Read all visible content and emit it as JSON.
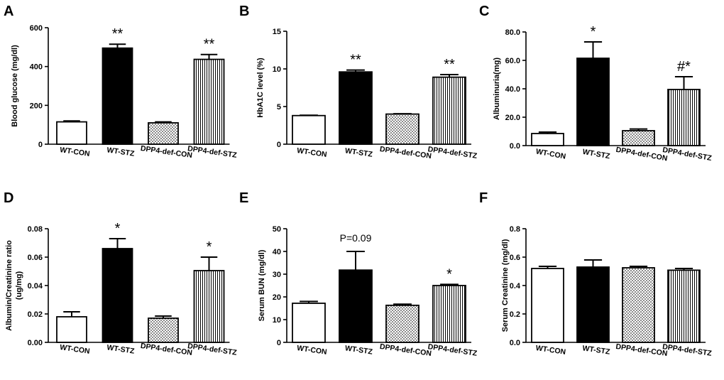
{
  "chart_data": [
    {
      "panel": "A",
      "type": "bar",
      "categories": [
        "WT-CON",
        "WT-STZ",
        "DPP4-def-CON",
        "DPP4-def-STZ"
      ],
      "values": [
        115,
        495,
        110,
        437
      ],
      "errors": [
        5,
        20,
        5,
        25
      ],
      "annotations": [
        "",
        "**",
        "",
        "**"
      ],
      "ylabel": "Blood glucose (mg/dl)",
      "ylim": [
        0,
        600
      ],
      "yticks": [
        "0",
        "200",
        "400",
        "600"
      ],
      "ytick_values": [
        0,
        200,
        400,
        600
      ],
      "fills": [
        "white",
        "black",
        "dots",
        "stripes"
      ]
    },
    {
      "panel": "B",
      "type": "bar",
      "categories": [
        "WT-CON",
        "WT-STZ",
        "DPP4-def-CON",
        "DPP4-def-STZ"
      ],
      "values": [
        3.8,
        9.6,
        4.0,
        8.9
      ],
      "errors": [
        0.05,
        0.25,
        0.05,
        0.35
      ],
      "annotations": [
        "",
        "**",
        "",
        "**"
      ],
      "ylabel": "HbA1C level (%)",
      "ylim": [
        0,
        15
      ],
      "yticks": [
        "0",
        "5",
        "10",
        "15"
      ],
      "ytick_values": [
        0,
        5,
        10,
        15
      ],
      "fills": [
        "white",
        "black",
        "dots",
        "stripes"
      ]
    },
    {
      "panel": "C",
      "type": "bar",
      "categories": [
        "WT-CON",
        "WT-STZ",
        "DPP4-def-CON",
        "DPP4-def-STZ"
      ],
      "values": [
        8.5,
        61.5,
        10.5,
        39.5
      ],
      "errors": [
        1.0,
        11.5,
        1.2,
        9.0
      ],
      "annotations": [
        "",
        "*",
        "",
        "#*"
      ],
      "ylabel": "Albuminuria(mg)",
      "ylim": [
        0,
        80
      ],
      "yticks": [
        "0.0",
        "20.0",
        "40.0",
        "60.0",
        "80.0"
      ],
      "ytick_values": [
        0,
        20,
        40,
        60,
        80
      ],
      "fills": [
        "white",
        "black",
        "dots",
        "stripes"
      ]
    },
    {
      "panel": "D",
      "type": "bar",
      "categories": [
        "WT-CON",
        "WT-STZ",
        "DPP4-def-CON",
        "DPP4-def-STZ"
      ],
      "values": [
        0.018,
        0.066,
        0.017,
        0.0505
      ],
      "errors": [
        0.0035,
        0.007,
        0.0015,
        0.0095
      ],
      "annotations": [
        "",
        "*",
        "",
        "*"
      ],
      "ylabel": "Albumin/Creatinine ratio (ug/mg)",
      "ylabel_lines": [
        "Albumin/Creatinine ratio",
        "(ug/mg)"
      ],
      "ylim": [
        0,
        0.08
      ],
      "yticks": [
        "0.00",
        "0.02",
        "0.04",
        "0.06",
        "0.08"
      ],
      "ytick_values": [
        0,
        0.02,
        0.04,
        0.06,
        0.08
      ],
      "fills": [
        "white",
        "black",
        "dots",
        "stripes"
      ]
    },
    {
      "panel": "E",
      "type": "bar",
      "categories": [
        "WT-CON",
        "WT-STZ",
        "DPP4-def-CON",
        "DPP4-def-STZ"
      ],
      "values": [
        17.2,
        31.8,
        16.3,
        25.0
      ],
      "errors": [
        0.8,
        8.2,
        0.5,
        0.5
      ],
      "annotations": [
        "",
        "P=0.09",
        "",
        "*"
      ],
      "ylabel": "Serum BUN (mg/dl)",
      "ylim": [
        0,
        50
      ],
      "yticks": [
        "0",
        "10",
        "20",
        "30",
        "40",
        "50"
      ],
      "ytick_values": [
        0,
        10,
        20,
        30,
        40,
        50
      ],
      "fills": [
        "white",
        "black",
        "dots",
        "stripes"
      ]
    },
    {
      "panel": "F",
      "type": "bar",
      "categories": [
        "WT-CON",
        "WT-STZ",
        "DPP4-def-CON",
        "DPP4-def-STZ"
      ],
      "values": [
        0.52,
        0.53,
        0.525,
        0.508
      ],
      "errors": [
        0.015,
        0.05,
        0.01,
        0.012
      ],
      "annotations": [
        "",
        "",
        "",
        ""
      ],
      "ylabel": "Serum Creatinine (mg/dl)",
      "ylim": [
        0,
        0.8
      ],
      "yticks": [
        "0.0",
        "0.2",
        "0.4",
        "0.6",
        "0.8"
      ],
      "ytick_values": [
        0,
        0.2,
        0.4,
        0.6,
        0.8
      ],
      "fills": [
        "white",
        "black",
        "dots",
        "stripes"
      ]
    }
  ]
}
